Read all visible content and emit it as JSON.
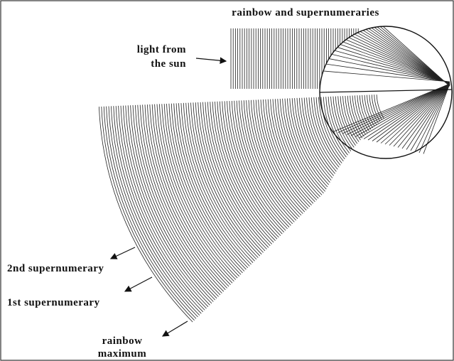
{
  "title": "rainbow and supernumeraries",
  "labels": {
    "sun": [
      "light from",
      "the sun"
    ],
    "second": "2nd supernumerary",
    "first": "1st supernumerary",
    "maximum": [
      "rainbow",
      "maximum"
    ]
  }
}
